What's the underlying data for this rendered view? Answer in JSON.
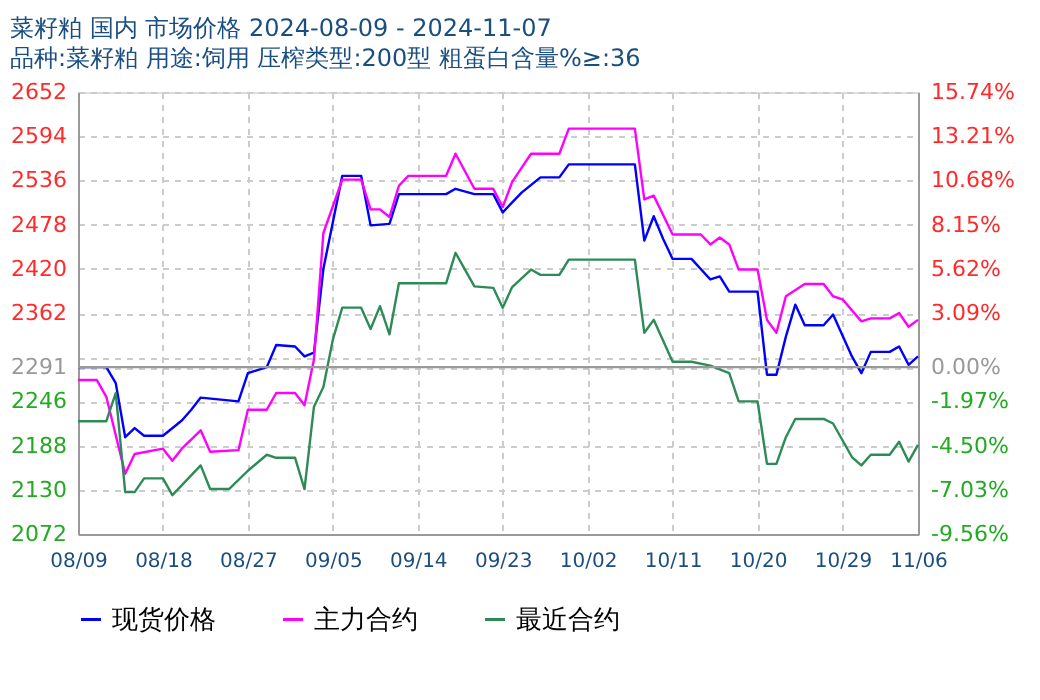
{
  "chart_data": {
    "type": "line",
    "title": "菜籽粕 国内 市场价格 2024-08-09 - 2024-11-07",
    "subtitle": "品种:菜籽粕 用途:饲用 压榨类型:200型 粗蛋白含量%≥:36",
    "series": [
      {
        "name": "现货价格",
        "color": "#0000ff",
        "x": [
          "2024-08-09",
          "2024-08-12",
          "2024-08-13",
          "2024-08-14",
          "2024-08-15",
          "2024-08-16",
          "2024-08-18",
          "2024-08-20",
          "2024-08-21",
          "2024-08-22",
          "2024-08-26",
          "2024-08-27",
          "2024-08-29",
          "2024-08-30",
          "2024-09-01",
          "2024-09-02",
          "2024-09-03",
          "2024-09-04",
          "2024-09-06",
          "2024-09-08",
          "2024-09-09",
          "2024-09-11",
          "2024-09-12",
          "2024-09-17",
          "2024-09-18",
          "2024-09-20",
          "2024-09-22",
          "2024-09-23",
          "2024-09-25",
          "2024-09-27",
          "2024-09-29",
          "2024-09-30",
          "2024-10-07",
          "2024-10-08",
          "2024-10-09",
          "2024-10-10",
          "2024-10-11",
          "2024-10-13",
          "2024-10-15",
          "2024-10-16",
          "2024-10-17",
          "2024-10-20",
          "2024-10-21",
          "2024-10-22",
          "2024-10-23",
          "2024-10-24",
          "2024-10-25",
          "2024-10-27",
          "2024-10-28",
          "2024-10-30",
          "2024-10-31",
          "2024-11-01",
          "2024-11-03",
          "2024-11-04",
          "2024-11-05",
          "2024-11-06"
        ],
        "values": [
          2291,
          2291,
          2270,
          2199,
          2211,
          2201,
          2201,
          2221,
          2235,
          2251,
          2246,
          2283,
          2291,
          2320,
          2318,
          2305,
          2310,
          2420,
          2542,
          2542,
          2477,
          2479,
          2518,
          2518,
          2525,
          2518,
          2518,
          2494,
          2520,
          2540,
          2540,
          2557,
          2557,
          2457,
          2489,
          2459,
          2433,
          2433,
          2406,
          2410,
          2390,
          2390,
          2281,
          2281,
          2331,
          2373,
          2346,
          2346,
          2360,
          2305,
          2283,
          2311,
          2311,
          2318,
          2294,
          2305
        ]
      },
      {
        "name": "主力合约",
        "color": "#ff00ff",
        "x": [
          "2024-08-09",
          "2024-08-11",
          "2024-08-12",
          "2024-08-14",
          "2024-08-15",
          "2024-08-18",
          "2024-08-19",
          "2024-08-20",
          "2024-08-22",
          "2024-08-23",
          "2024-08-26",
          "2024-08-27",
          "2024-08-29",
          "2024-08-30",
          "2024-09-01",
          "2024-09-02",
          "2024-09-03",
          "2024-09-04",
          "2024-09-06",
          "2024-09-08",
          "2024-09-09",
          "2024-09-10",
          "2024-09-11",
          "2024-09-12",
          "2024-09-13",
          "2024-09-17",
          "2024-09-18",
          "2024-09-20",
          "2024-09-22",
          "2024-09-23",
          "2024-09-24",
          "2024-09-26",
          "2024-09-29",
          "2024-09-30",
          "2024-10-07",
          "2024-10-08",
          "2024-10-09",
          "2024-10-11",
          "2024-10-14",
          "2024-10-15",
          "2024-10-16",
          "2024-10-17",
          "2024-10-18",
          "2024-10-20",
          "2024-10-21",
          "2024-10-22",
          "2024-10-23",
          "2024-10-25",
          "2024-10-27",
          "2024-10-28",
          "2024-10-29",
          "2024-10-31",
          "2024-11-01",
          "2024-11-03",
          "2024-11-04",
          "2024-11-05",
          "2024-11-06"
        ],
        "values": [
          2274,
          2274,
          2252,
          2151,
          2177,
          2184,
          2168,
          2184,
          2208,
          2180,
          2182,
          2235,
          2235,
          2257,
          2257,
          2241,
          2301,
          2467,
          2537,
          2537,
          2498,
          2498,
          2488,
          2529,
          2542,
          2542,
          2571,
          2525,
          2525,
          2501,
          2534,
          2571,
          2571,
          2604,
          2604,
          2511,
          2516,
          2465,
          2465,
          2452,
          2461,
          2452,
          2419,
          2419,
          2353,
          2336,
          2384,
          2400,
          2400,
          2384,
          2380,
          2351,
          2355,
          2355,
          2362,
          2344,
          2353
        ]
      },
      {
        "name": "最近合约",
        "color": "#2e8b57",
        "x": [
          "2024-08-09",
          "2024-08-12",
          "2024-08-13",
          "2024-08-14",
          "2024-08-15",
          "2024-08-16",
          "2024-08-18",
          "2024-08-19",
          "2024-08-22",
          "2024-08-23",
          "2024-08-25",
          "2024-08-27",
          "2024-08-29",
          "2024-08-30",
          "2024-09-01",
          "2024-09-02",
          "2024-09-03",
          "2024-09-04",
          "2024-09-05",
          "2024-09-06",
          "2024-09-08",
          "2024-09-09",
          "2024-09-10",
          "2024-09-11",
          "2024-09-12",
          "2024-09-17",
          "2024-09-18",
          "2024-09-20",
          "2024-09-22",
          "2024-09-23",
          "2024-09-24",
          "2024-09-26",
          "2024-09-27",
          "2024-09-29",
          "2024-09-30",
          "2024-10-07",
          "2024-10-08",
          "2024-10-09",
          "2024-10-11",
          "2024-10-13",
          "2024-10-15",
          "2024-10-17",
          "2024-10-18",
          "2024-10-20",
          "2024-10-21",
          "2024-10-22",
          "2024-10-23",
          "2024-10-24",
          "2024-10-27",
          "2024-10-28",
          "2024-10-30",
          "2024-10-31",
          "2024-11-01",
          "2024-11-03",
          "2024-11-04",
          "2024-11-05",
          "2024-11-06"
        ],
        "values": [
          2220,
          2220,
          2257,
          2127,
          2127,
          2145,
          2145,
          2123,
          2162,
          2131,
          2131,
          2155,
          2176,
          2172,
          2172,
          2131,
          2239,
          2265,
          2327,
          2369,
          2369,
          2341,
          2371,
          2334,
          2401,
          2401,
          2441,
          2397,
          2395,
          2369,
          2396,
          2419,
          2412,
          2412,
          2432,
          2432,
          2336,
          2353,
          2298,
          2298,
          2293,
          2283,
          2246,
          2246,
          2164,
          2164,
          2199,
          2223,
          2223,
          2217,
          2173,
          2162,
          2176,
          2176,
          2193,
          2167,
          2189
        ]
      }
    ],
    "xlim": [
      "2024-08-09",
      "2024-11-06"
    ],
    "xticks": [
      {
        "value": "2024-08-09",
        "label": "08/09"
      },
      {
        "value": "2024-08-18",
        "label": "08/18"
      },
      {
        "value": "2024-08-27",
        "label": "08/27"
      },
      {
        "value": "2024-09-05",
        "label": "09/05"
      },
      {
        "value": "2024-09-14",
        "label": "09/14"
      },
      {
        "value": "2024-09-23",
        "label": "09/23"
      },
      {
        "value": "2024-10-02",
        "label": "10/02"
      },
      {
        "value": "2024-10-11",
        "label": "10/11"
      },
      {
        "value": "2024-10-20",
        "label": "10/20"
      },
      {
        "value": "2024-10-29",
        "label": "10/29"
      },
      {
        "value": "2024-11-06",
        "label": "11/06"
      }
    ],
    "ylim": [
      2072,
      2652
    ],
    "yticks": [
      2072,
      2130,
      2188,
      2246,
      2291,
      {
        "value": 2304,
        "label": null
      },
      2362,
      2420,
      2478,
      2536,
      2594,
      2652
    ],
    "y2lim": [
      -9.56,
      15.74
    ],
    "y2ticks": [
      {
        "value": -9.56,
        "label": "-9.56%"
      },
      {
        "value": -7.03,
        "label": "-7.03%"
      },
      {
        "value": -4.5,
        "label": "-4.50%"
      },
      {
        "value": -1.97,
        "label": "-1.97%"
      },
      {
        "value": 0,
        "label": "0.00%"
      },
      {
        "value": 3.09,
        "label": "3.09%"
      },
      {
        "value": 5.62,
        "label": "5.62%"
      },
      {
        "value": 8.15,
        "label": "8.15%"
      },
      {
        "value": 10.68,
        "label": "10.68%"
      },
      {
        "value": 13.21,
        "label": "13.21%"
      },
      {
        "value": 15.74,
        "label": "15.74%"
      }
    ],
    "ref_lines": [
      {
        "axis": "y",
        "value": 2291,
        "color": "#999999"
      }
    ],
    "grid": true,
    "legend": "bottom",
    "line_style": "solid"
  }
}
